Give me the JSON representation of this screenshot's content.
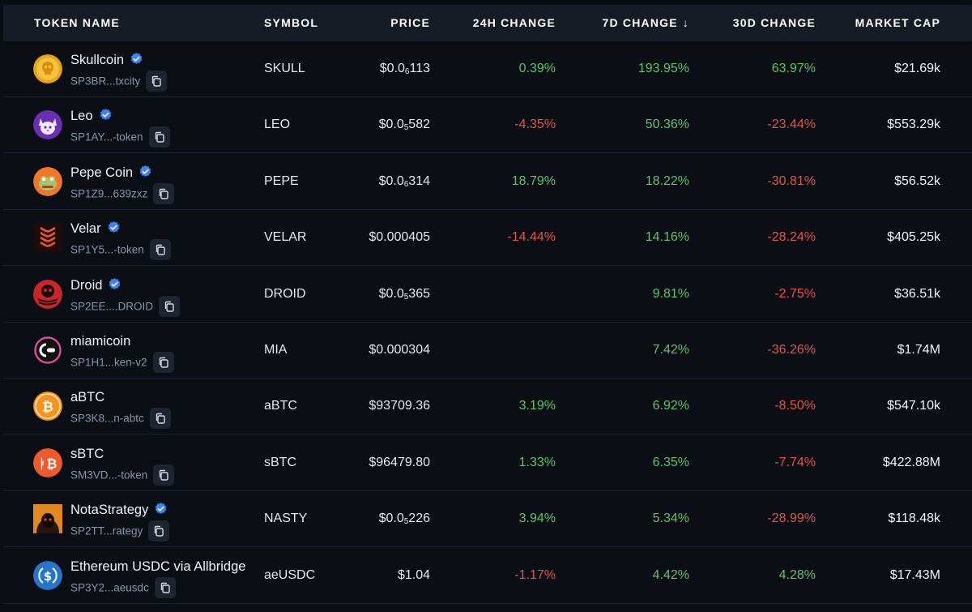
{
  "header": {
    "token_name": "TOKEN NAME",
    "symbol": "SYMBOL",
    "price": "PRICE",
    "change_24h": "24H CHANGE",
    "change_7d": "7D CHANGE",
    "sort_indicator": "↓",
    "change_30d": "30D CHANGE",
    "market_cap": "MARKET CAP"
  },
  "colors": {
    "positive": "#5cc66f",
    "negative": "#e5544b",
    "verified": "#3b82f6"
  },
  "rows": [
    {
      "name": "Skullcoin",
      "verified": true,
      "address": "SP3BR...txcity",
      "symbol": "SKULL",
      "price_pre": "$0.0",
      "price_sub": "6",
      "price_post": "113",
      "change_24h": "0.39%",
      "change_7d": "193.95%",
      "change_30d": "63.97%",
      "market_cap": "$21.69k",
      "icon": "skull-coin-icon"
    },
    {
      "name": "Leo",
      "verified": true,
      "address": "SP1AY...-token",
      "symbol": "LEO",
      "price_pre": "$0.0",
      "price_sub": "5",
      "price_post": "582",
      "change_24h": "-4.35%",
      "change_7d": "50.36%",
      "change_30d": "-23.44%",
      "market_cap": "$553.29k",
      "icon": "leo-cat-icon"
    },
    {
      "name": "Pepe Coin",
      "verified": true,
      "address": "SP1Z9...639zxz",
      "symbol": "PEPE",
      "price_pre": "$0.0",
      "price_sub": "6",
      "price_post": "314",
      "change_24h": "18.79%",
      "change_7d": "18.22%",
      "change_30d": "-30.81%",
      "market_cap": "$56.52k",
      "icon": "pepe-frog-icon"
    },
    {
      "name": "Velar",
      "verified": true,
      "address": "SP1Y5...-token",
      "symbol": "VELAR",
      "price_pre": "$0.000405",
      "price_sub": "",
      "price_post": "",
      "change_24h": "-14.44%",
      "change_7d": "14.16%",
      "change_30d": "-28.24%",
      "market_cap": "$405.25k",
      "icon": "velar-logo-icon"
    },
    {
      "name": "Droid",
      "verified": true,
      "address": "SP2EE....DROID",
      "symbol": "DROID",
      "price_pre": "$0.0",
      "price_sub": "5",
      "price_post": "365",
      "change_24h": "",
      "change_7d": "9.81%",
      "change_30d": "-2.75%",
      "market_cap": "$36.51k",
      "icon": "droid-logo-icon"
    },
    {
      "name": "miamicoin",
      "verified": false,
      "address": "SP1H1...ken-v2",
      "symbol": "MIA",
      "price_pre": "$0.000304",
      "price_sub": "",
      "price_post": "",
      "change_24h": "",
      "change_7d": "7.42%",
      "change_30d": "-36.26%",
      "market_cap": "$1.74M",
      "icon": "miamicoin-icon"
    },
    {
      "name": "aBTC",
      "verified": false,
      "address": "SP3K8...n-abtc",
      "symbol": "aBTC",
      "price_pre": "$93709.36",
      "price_sub": "",
      "price_post": "",
      "change_24h": "3.19%",
      "change_7d": "6.92%",
      "change_30d": "-8.50%",
      "market_cap": "$547.10k",
      "icon": "bitcoin-icon"
    },
    {
      "name": "sBTC",
      "verified": false,
      "address": "SM3VD...-token",
      "symbol": "sBTC",
      "price_pre": "$96479.80",
      "price_sub": "",
      "price_post": "",
      "change_24h": "1.33%",
      "change_7d": "6.35%",
      "change_30d": "-7.74%",
      "market_cap": "$422.88M",
      "icon": "sbtc-icon"
    },
    {
      "name": "NotaStrategy",
      "verified": true,
      "address": "SP2TT...rategy",
      "symbol": "NASTY",
      "price_pre": "$0.0",
      "price_sub": "5",
      "price_post": "226",
      "change_24h": "3.94%",
      "change_7d": "5.34%",
      "change_30d": "-28.99%",
      "market_cap": "$118.48k",
      "icon": "hooded-figure-icon"
    },
    {
      "name": "Ethereum USDC via Allbridge",
      "verified": false,
      "address": "SP3Y2...aeusdc",
      "symbol": "aeUSDC",
      "price_pre": "$1.04",
      "price_sub": "",
      "price_post": "",
      "change_24h": "-1.17%",
      "change_7d": "4.42%",
      "change_30d": "4.28%",
      "market_cap": "$17.43M",
      "icon": "usdc-icon"
    }
  ]
}
